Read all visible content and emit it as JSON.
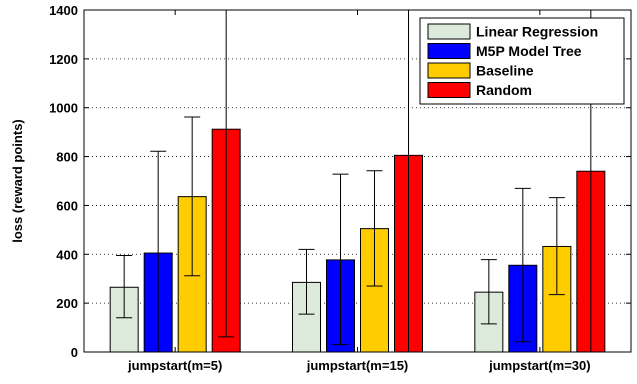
{
  "chart_data": {
    "type": "bar",
    "ylabel": "loss (reward points)",
    "xlabel": "",
    "ylim": [
      0,
      1400
    ],
    "yticks": [
      0,
      200,
      400,
      600,
      800,
      1000,
      1200,
      1400
    ],
    "grid": "dotted",
    "legend_position": "top-right",
    "categories": [
      "jumpstart(m=5)",
      "jumpstart(m=15)",
      "jumpstart(m=30)"
    ],
    "series": [
      {
        "name": "Linear Regression",
        "color": "#dbeadb",
        "values": [
          265,
          285,
          245
        ],
        "err_low": [
          140,
          155,
          115
        ],
        "err_high": [
          395,
          420,
          378
        ]
      },
      {
        "name": "M5P Model Tree",
        "color": "#0000ff",
        "values": [
          405,
          377,
          355
        ],
        "err_low": [
          0,
          30,
          42
        ],
        "err_high": [
          822,
          728,
          670
        ]
      },
      {
        "name": "Baseline",
        "color": "#ffcc00",
        "values": [
          636,
          505,
          432
        ],
        "err_low": [
          312,
          270,
          235
        ],
        "err_high": [
          962,
          742,
          632
        ]
      },
      {
        "name": "Random",
        "color": "#ff0000",
        "values": [
          912,
          805,
          740
        ],
        "err_low": [
          62,
          0,
          0
        ],
        "err_high": [
          1400,
          1400,
          1400
        ]
      }
    ]
  }
}
